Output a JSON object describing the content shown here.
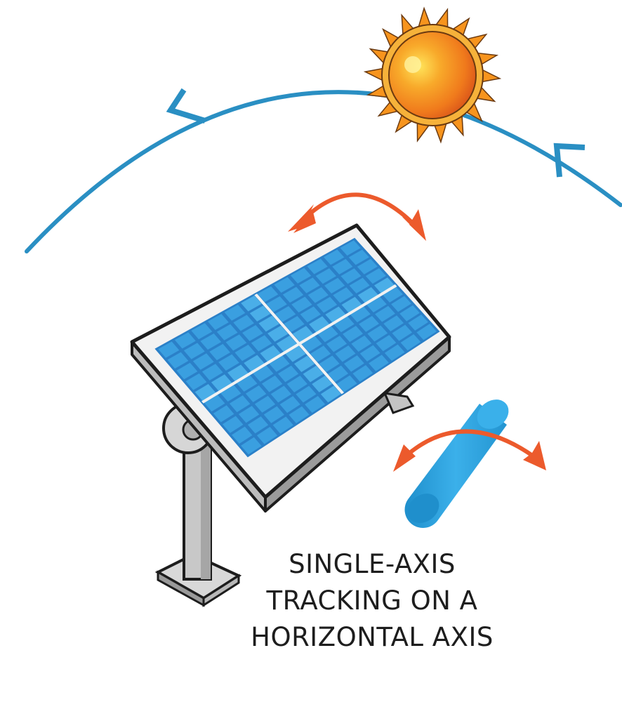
{
  "caption": {
    "lines": [
      "SINGLE-AXIS",
      "TRACKING ON A",
      "HORIZONTAL AXIS"
    ]
  },
  "icons": [
    "sun-icon",
    "solar-panel-icon",
    "rotation-axis-icon",
    "tilt-arrow-icon",
    "sun-path-arrow-icon"
  ],
  "colors": {
    "sun_path": "#2a8fc3",
    "rotation_arrows": "#ec5a2c",
    "panel_cells": "#3a9fe0",
    "axis_cylinder": "#2ea4de",
    "sun_core": "#f07a1c",
    "sun_rays": "#f7941d",
    "frame": "#f2f2f2",
    "post": "#c8c8c8"
  }
}
